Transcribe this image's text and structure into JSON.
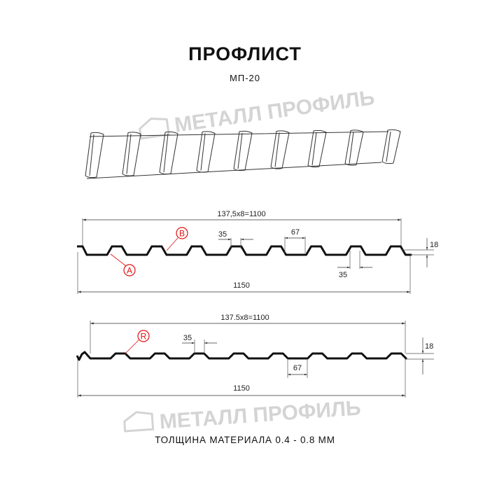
{
  "title": "ПРОФЛИСТ",
  "subtitle": "МП-20",
  "footer": "ТОЛЩИНА МАТЕРИАЛА 0.4 - 0.8 ММ",
  "watermark": "МЕТАЛЛ ПРОФИЛЬ",
  "colors": {
    "profile": "#111111",
    "marker": "#e01010",
    "watermark": "#d4d4d4",
    "dimension": "#333333"
  },
  "profile1": {
    "pitch_label": "137,5x8=1100",
    "total_label": "1150",
    "crest_label": "35",
    "trough_label": "35",
    "rib_base_label": "67",
    "height_label": "18",
    "marker_a": "A",
    "marker_b": "B"
  },
  "profile2": {
    "pitch_label": "137.5x8=1100",
    "total_label": "1150",
    "crest_label": "35",
    "rib_base_label": "67",
    "height_label": "18",
    "marker_r": "R"
  }
}
